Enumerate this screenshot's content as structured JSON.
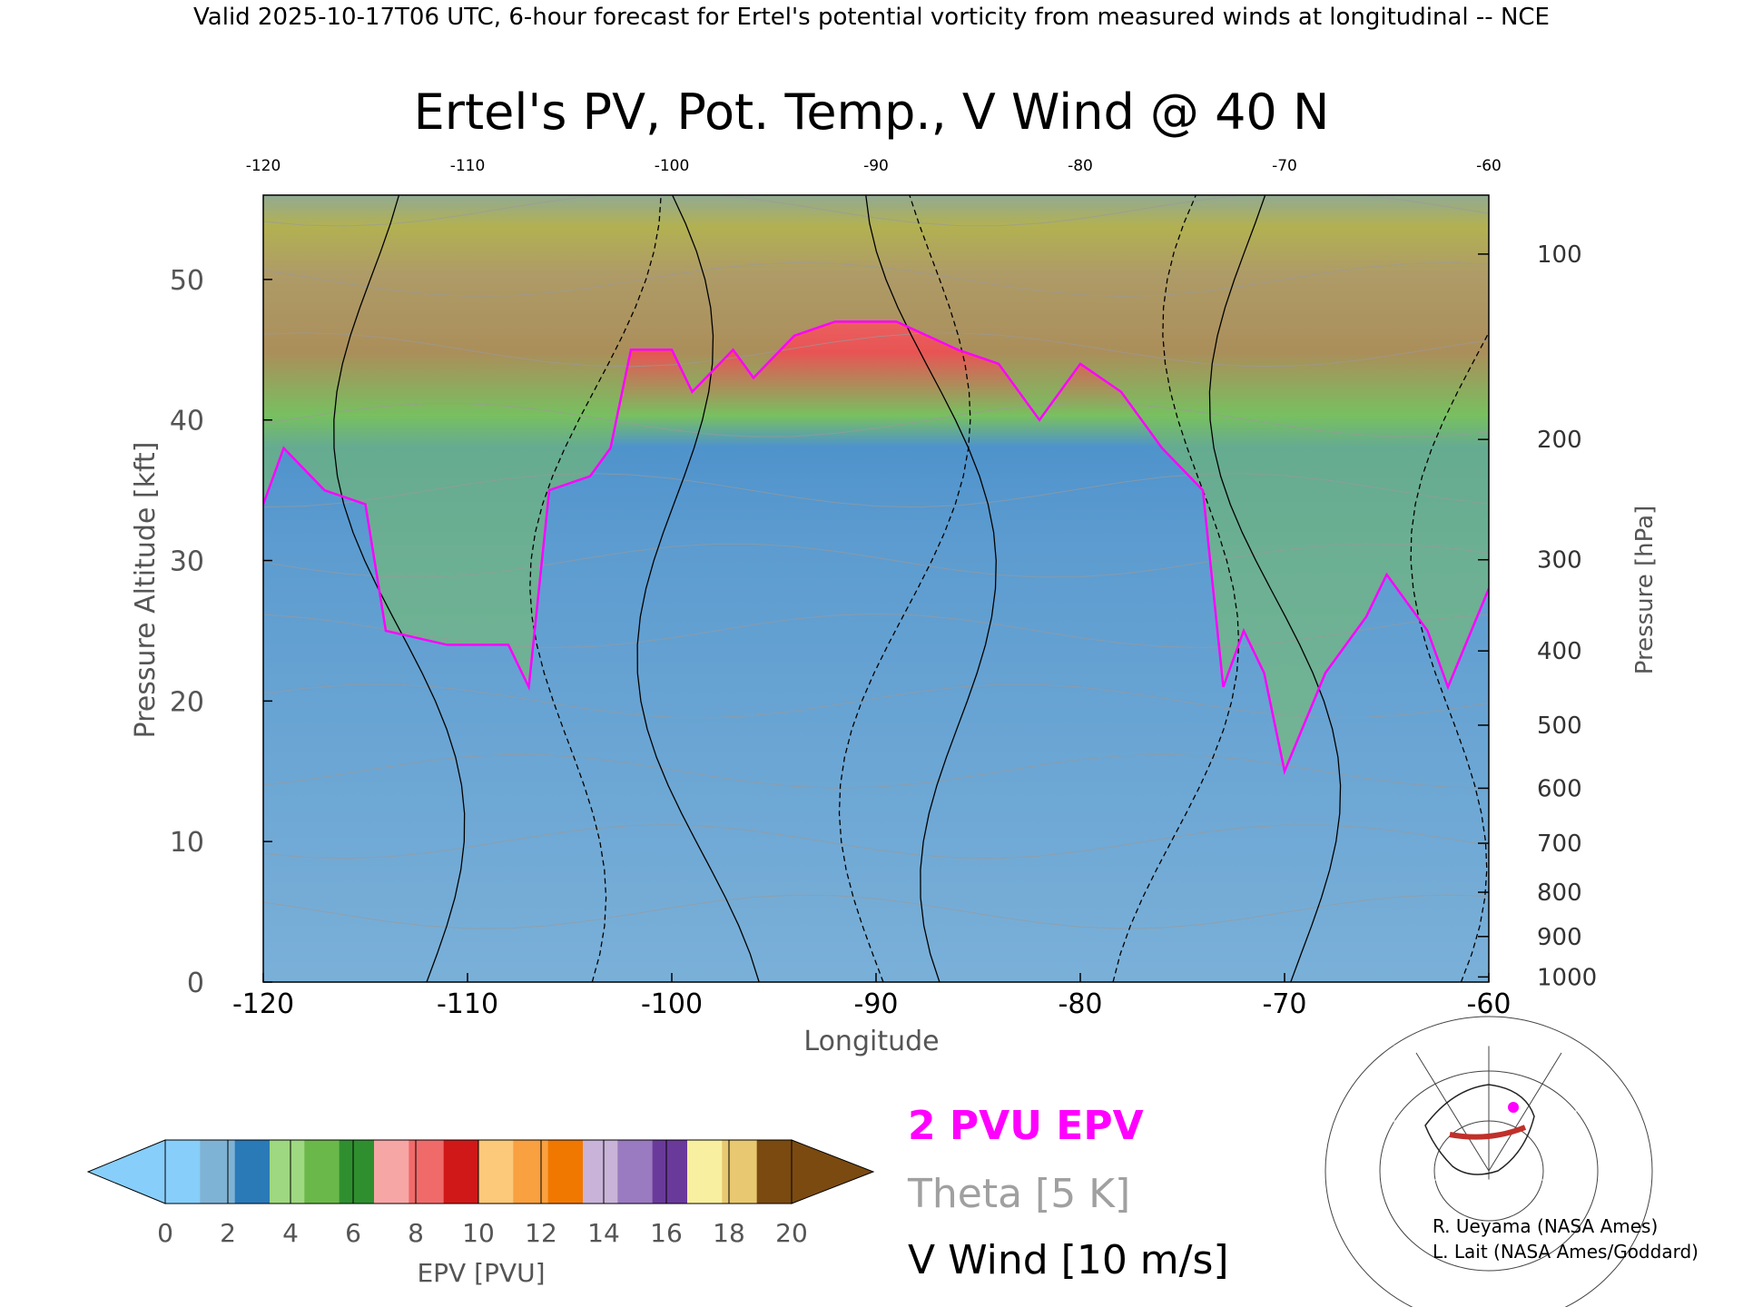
{
  "header": "Valid 2025-10-17T06 UTC, 6-hour forecast for Ertel's potential vorticity from measured winds at longitudinal -- NCE",
  "chart_data": {
    "type": "heatmap",
    "title": "Ertel's PV, Pot. Temp., V Wind @ 40 N",
    "xlabel": "Longitude",
    "ylabel": "Pressure Altitude [kft]",
    "ylabel_right": "Pressure [hPa]",
    "xlim": [
      -120,
      -60
    ],
    "ylim": [
      0,
      56
    ],
    "x_ticks": [
      "-120",
      "-110",
      "-100",
      "-90",
      "-80",
      "-70",
      "-60"
    ],
    "x_tick_values": [
      -120,
      -110,
      -100,
      -90,
      -80,
      -70,
      -60
    ],
    "y_ticks": [
      "0",
      "10",
      "20",
      "30",
      "40",
      "50"
    ],
    "y_tick_values": [
      0,
      10,
      20,
      30,
      40,
      50
    ],
    "pressure_ticks": [
      {
        "label": "100",
        "hpa": 100
      },
      {
        "label": "200",
        "hpa": 200
      },
      {
        "label": "300",
        "hpa": 300
      },
      {
        "label": "400",
        "hpa": 400
      },
      {
        "label": "500",
        "hpa": 500
      },
      {
        "label": "600",
        "hpa": 600
      },
      {
        "label": "700",
        "hpa": 700
      },
      {
        "label": "800",
        "hpa": 800
      },
      {
        "label": "900",
        "hpa": 900
      },
      {
        "label": "1000",
        "hpa": 1000
      }
    ],
    "tropopause_2pvu_kft": [
      {
        "lon": -120,
        "kft": 34
      },
      {
        "lon": -119,
        "kft": 38
      },
      {
        "lon": -117,
        "kft": 35
      },
      {
        "lon": -115,
        "kft": 34
      },
      {
        "lon": -114,
        "kft": 25
      },
      {
        "lon": -111,
        "kft": 24
      },
      {
        "lon": -108,
        "kft": 24
      },
      {
        "lon": -107,
        "kft": 21
      },
      {
        "lon": -106,
        "kft": 35
      },
      {
        "lon": -104,
        "kft": 36
      },
      {
        "lon": -103,
        "kft": 38
      },
      {
        "lon": -102,
        "kft": 45
      },
      {
        "lon": -100,
        "kft": 45
      },
      {
        "lon": -99,
        "kft": 42
      },
      {
        "lon": -97,
        "kft": 45
      },
      {
        "lon": -96,
        "kft": 43
      },
      {
        "lon": -94,
        "kft": 46
      },
      {
        "lon": -92,
        "kft": 47
      },
      {
        "lon": -89,
        "kft": 47
      },
      {
        "lon": -86,
        "kft": 45
      },
      {
        "lon": -84,
        "kft": 44
      },
      {
        "lon": -82,
        "kft": 40
      },
      {
        "lon": -80,
        "kft": 44
      },
      {
        "lon": -78,
        "kft": 42
      },
      {
        "lon": -76,
        "kft": 38
      },
      {
        "lon": -74,
        "kft": 35
      },
      {
        "lon": -73,
        "kft": 21
      },
      {
        "lon": -72,
        "kft": 25
      },
      {
        "lon": -71,
        "kft": 22
      },
      {
        "lon": -70,
        "kft": 15
      },
      {
        "lon": -68,
        "kft": 22
      },
      {
        "lon": -66,
        "kft": 26
      },
      {
        "lon": -65,
        "kft": 29
      },
      {
        "lon": -63,
        "kft": 25
      },
      {
        "lon": -62,
        "kft": 21
      },
      {
        "lon": -60,
        "kft": 28
      }
    ],
    "colorbar": {
      "label": "EPV [PVU]",
      "tick_labels": [
        "0",
        "2",
        "4",
        "6",
        "8",
        "10",
        "12",
        "14",
        "16",
        "18",
        "20"
      ],
      "tick_values": [
        0,
        2,
        4,
        6,
        8,
        10,
        12,
        14,
        16,
        18,
        20
      ],
      "colors": [
        "#87cefa",
        "#7fb3d5",
        "#2a7ab8",
        "#9ed880",
        "#6ab84a",
        "#2f8f2f",
        "#f7a6a6",
        "#f06a6a",
        "#d01818",
        "#fcc87a",
        "#f9a040",
        "#f07800",
        "#c9b3d8",
        "#9a7ac0",
        "#6a3a9a",
        "#f8f0a0",
        "#e8c870",
        "#7a4a10"
      ]
    }
  },
  "legend": {
    "epv": "2 PVU EPV",
    "epv_color": "#ff00ff",
    "theta": "Theta [5 K]",
    "theta_color": "#a0a0a0",
    "wind": "V Wind [10 m/s]",
    "wind_color": "#000000"
  },
  "credits": {
    "line1": "R. Ueyama (NASA Ames)",
    "line2": "L. Lait (NASA Ames/Goddard)"
  }
}
